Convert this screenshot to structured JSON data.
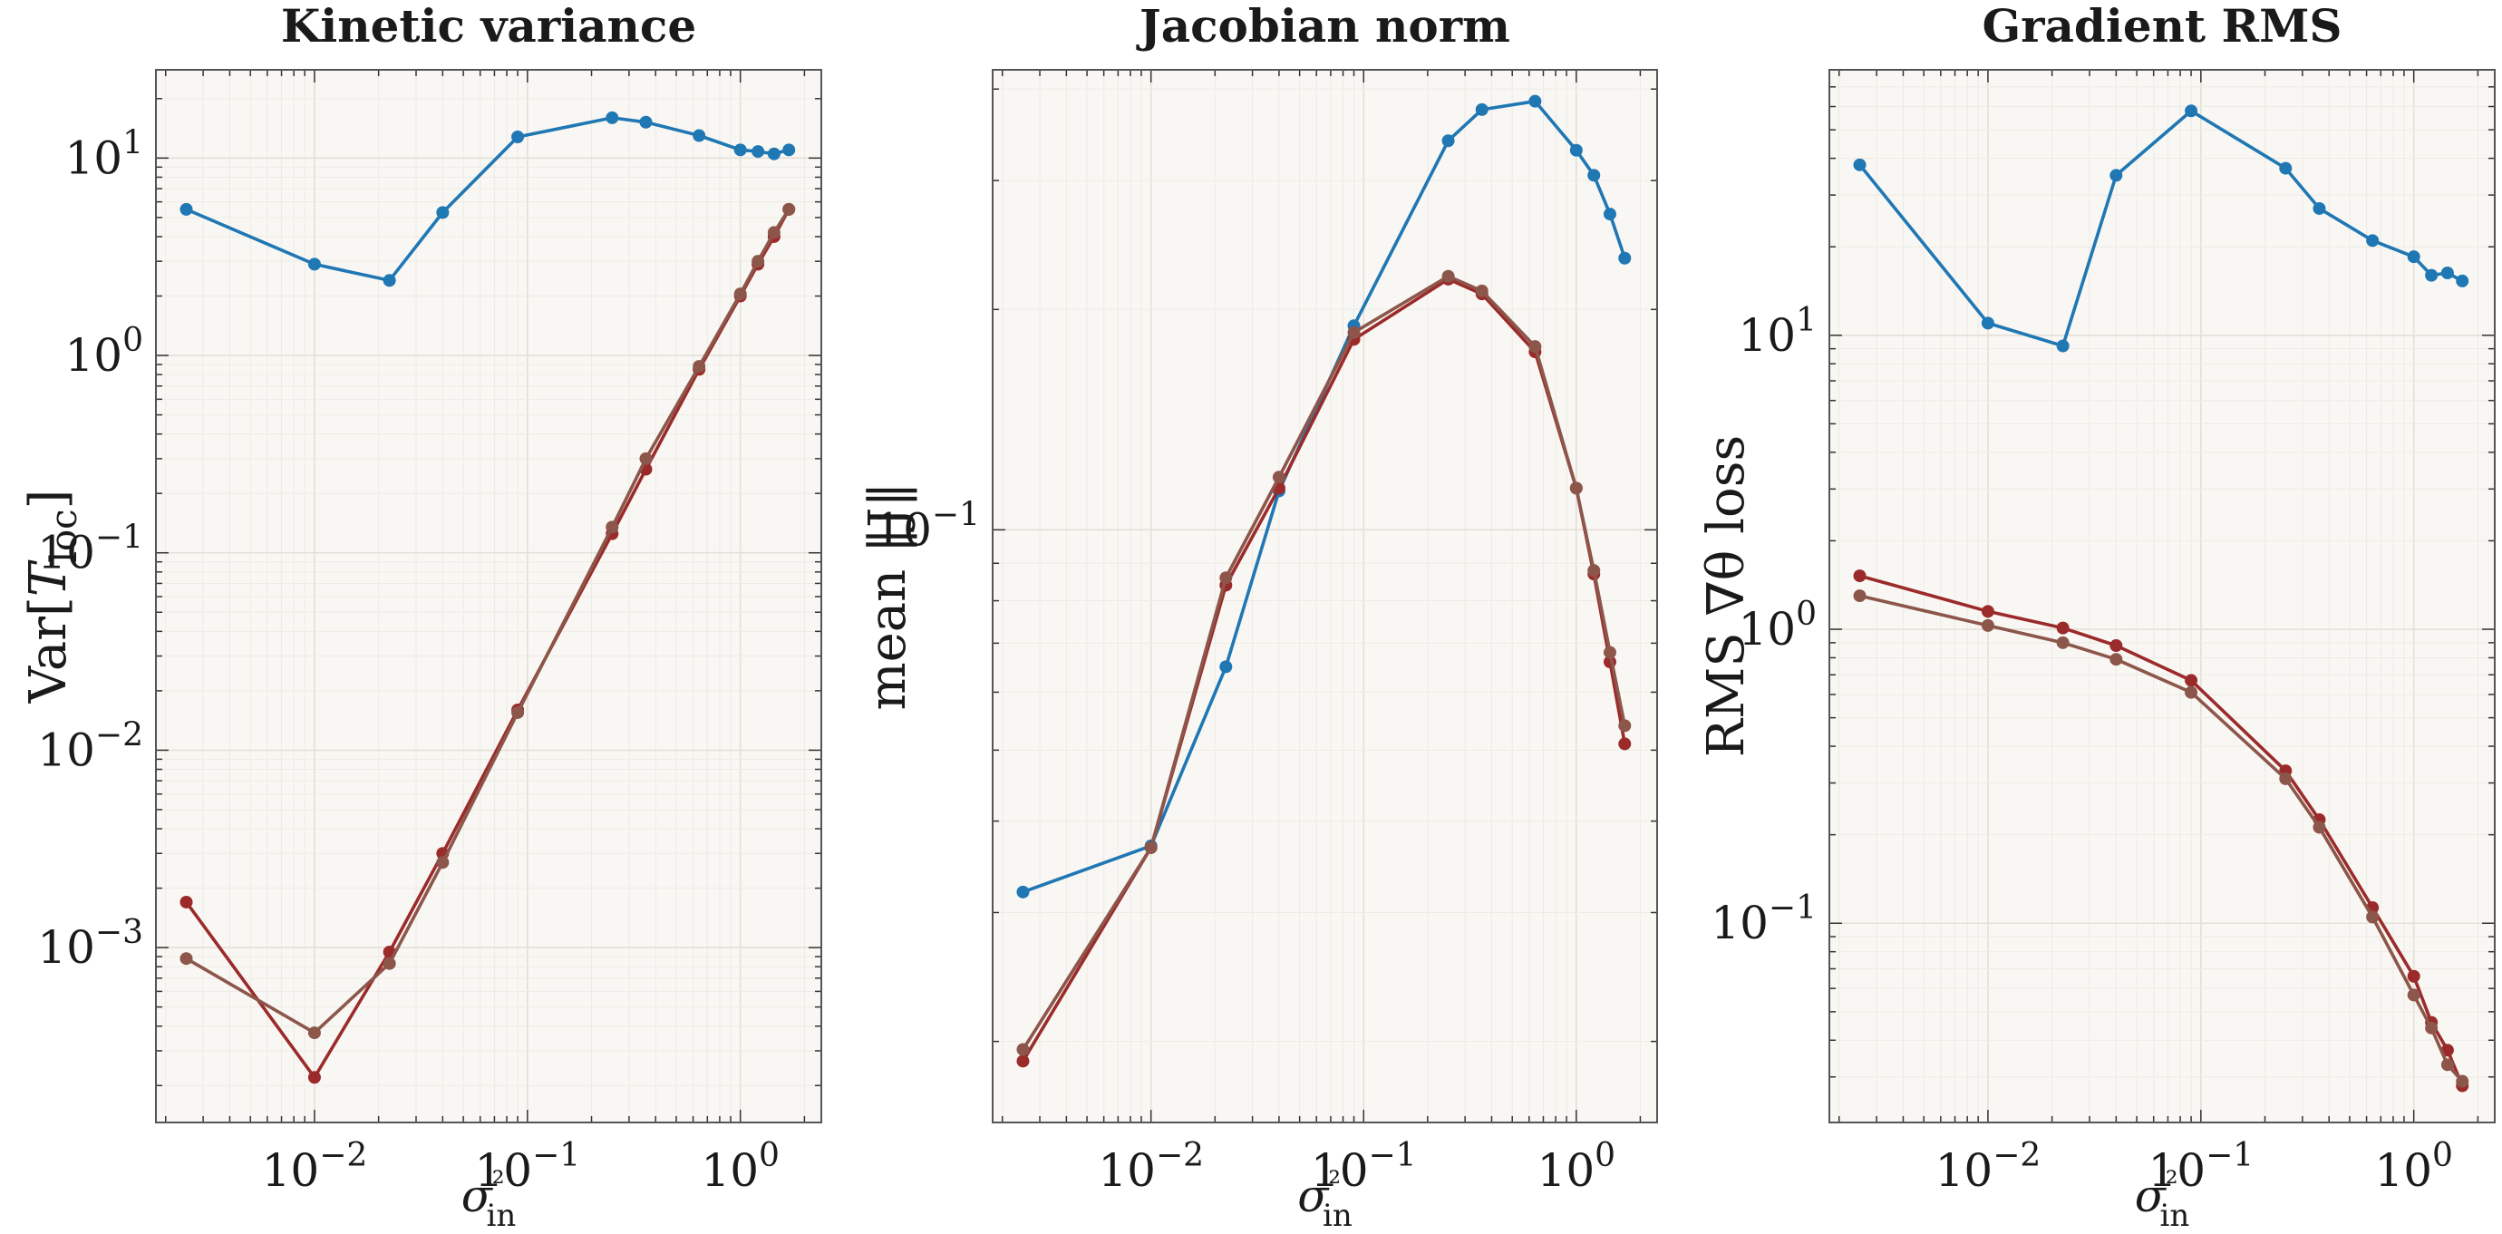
{
  "chart_data": [
    {
      "type": "line",
      "title": "Kinetic variance",
      "xlabel": "σ²in",
      "ylabel": "Var[T_loc]",
      "xscale": "log",
      "yscale": "log",
      "xlim": [
        0.0018,
        2.4
      ],
      "ylim": [
        0.00013,
        28
      ],
      "x_ticks": [
        {
          "value": 0.01,
          "mant": "10",
          "exp": "−2"
        },
        {
          "value": 0.1,
          "mant": "10",
          "exp": "−1"
        },
        {
          "value": 1,
          "mant": "10",
          "exp": "0"
        }
      ],
      "y_ticks": [
        {
          "value": 0.001,
          "mant": "10",
          "exp": "−3"
        },
        {
          "value": 0.01,
          "mant": "10",
          "exp": "−2"
        },
        {
          "value": 0.1,
          "mant": "10",
          "exp": "−1"
        },
        {
          "value": 1,
          "mant": "10",
          "exp": "0"
        },
        {
          "value": 10,
          "mant": "10",
          "exp": "1"
        }
      ],
      "x": [
        0.0025,
        0.01,
        0.0225,
        0.04,
        0.09,
        0.25,
        0.36,
        0.64,
        1.0,
        1.21,
        1.44,
        1.69
      ],
      "series": [
        {
          "color": "#1f77b4",
          "values": [
            5.5,
            2.9,
            2.4,
            5.3,
            12.8,
            16.0,
            15.2,
            13.0,
            11.0,
            10.8,
            10.5,
            11.0
          ]
        },
        {
          "color": "#9b2b2b",
          "values": [
            0.0017,
            0.00022,
            0.00095,
            0.003,
            0.016,
            0.125,
            0.265,
            0.85,
            2.0,
            2.9,
            4.0,
            5.5
          ]
        },
        {
          "color": "#8c564b",
          "values": [
            0.00088,
            0.00037,
            0.00083,
            0.0027,
            0.0155,
            0.135,
            0.3,
            0.88,
            2.05,
            3.0,
            4.2,
            5.5
          ]
        }
      ],
      "grid": true
    },
    {
      "type": "line",
      "title": "Jacobian norm",
      "xlabel": "σ²in",
      "ylabel": "mean ‖J‖",
      "xscale": "log",
      "yscale": "log",
      "xlim": [
        0.0018,
        2.4
      ],
      "ylim": [
        0.0155,
        0.425
      ],
      "x_ticks": [
        {
          "value": 0.01,
          "mant": "10",
          "exp": "−2"
        },
        {
          "value": 0.1,
          "mant": "10",
          "exp": "−1"
        },
        {
          "value": 1,
          "mant": "10",
          "exp": "0"
        }
      ],
      "y_ticks": [
        {
          "value": 0.1,
          "mant": "10",
          "exp": "−1"
        }
      ],
      "x": [
        0.0025,
        0.01,
        0.0225,
        0.04,
        0.09,
        0.25,
        0.36,
        0.64,
        1.0,
        1.21,
        1.44,
        1.69
      ],
      "series": [
        {
          "color": "#1f77b4",
          "values": [
            0.032,
            0.037,
            0.065,
            0.113,
            0.19,
            0.34,
            0.375,
            0.385,
            0.33,
            0.305,
            0.27,
            0.235
          ]
        },
        {
          "color": "#9b2b2b",
          "values": [
            0.0188,
            0.0368,
            0.084,
            0.114,
            0.182,
            0.22,
            0.21,
            0.175,
            0.114,
            0.087,
            0.066,
            0.051
          ]
        },
        {
          "color": "#8c564b",
          "values": [
            0.0195,
            0.0368,
            0.086,
            0.118,
            0.186,
            0.222,
            0.212,
            0.178,
            0.114,
            0.088,
            0.068,
            0.054
          ]
        }
      ],
      "grid": true
    },
    {
      "type": "line",
      "title": "Gradient RMS",
      "xlabel": "σ²in",
      "ylabel": "RMS ∇θ loss",
      "xscale": "log",
      "yscale": "log",
      "xlim": [
        0.0018,
        2.4
      ],
      "ylim": [
        0.021,
        80
      ],
      "x_ticks": [
        {
          "value": 0.01,
          "mant": "10",
          "exp": "−2"
        },
        {
          "value": 0.1,
          "mant": "10",
          "exp": "−1"
        },
        {
          "value": 1,
          "mant": "10",
          "exp": "0"
        }
      ],
      "y_ticks": [
        {
          "value": 0.1,
          "mant": "10",
          "exp": "−1"
        },
        {
          "value": 1,
          "mant": "10",
          "exp": "0"
        },
        {
          "value": 10,
          "mant": "10",
          "exp": "1"
        }
      ],
      "x": [
        0.0025,
        0.01,
        0.0225,
        0.04,
        0.09,
        0.25,
        0.36,
        0.64,
        1.0,
        1.21,
        1.44,
        1.69
      ],
      "series": [
        {
          "color": "#1f77b4",
          "values": [
            38,
            11,
            9.2,
            35,
            58,
            37,
            27,
            21,
            18.5,
            16,
            16.3,
            15.3
          ]
        },
        {
          "color": "#9b2b2b",
          "values": [
            1.52,
            1.15,
            1.01,
            0.88,
            0.67,
            0.33,
            0.225,
            0.113,
            0.066,
            0.046,
            0.037,
            0.028
          ]
        },
        {
          "color": "#8c564b",
          "values": [
            1.3,
            1.03,
            0.9,
            0.79,
            0.61,
            0.31,
            0.212,
            0.105,
            0.057,
            0.044,
            0.033,
            0.029
          ]
        }
      ],
      "grid": true
    }
  ]
}
